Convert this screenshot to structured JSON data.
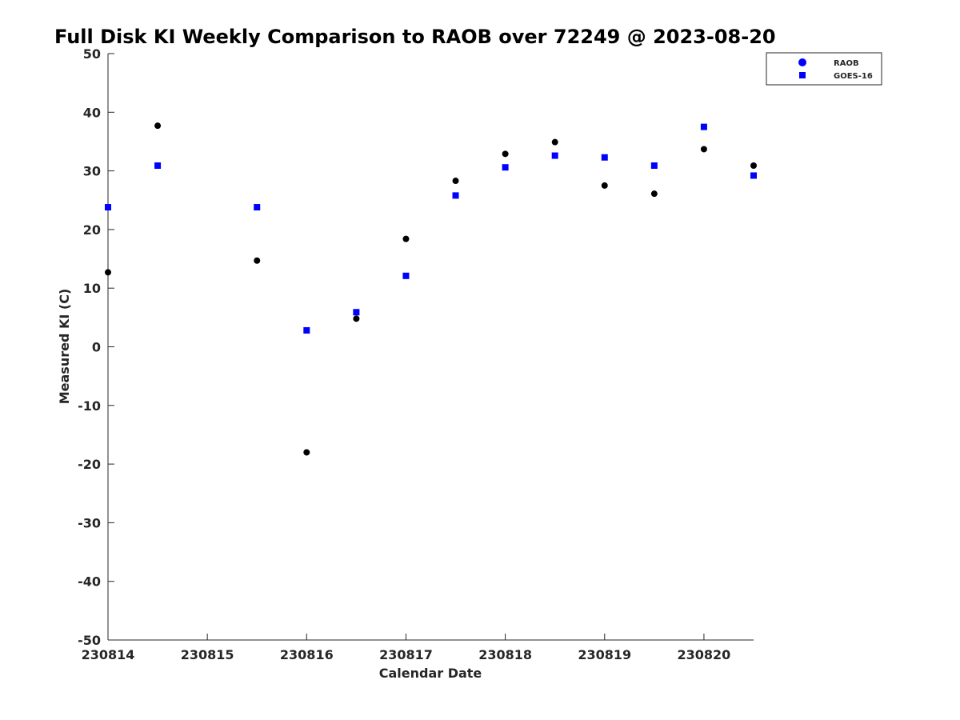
{
  "chart_data": {
    "type": "scatter",
    "title": "Full Disk KI Weekly Comparison to RAOB over 72249 @ 2023-08-20",
    "xlabel": "Calendar Date",
    "ylabel": "Measured KI (C)",
    "xlim": [
      "2023-08-14T00:00",
      "2023-08-20T12:00"
    ],
    "ylim": [
      -50,
      50
    ],
    "x_tick_values": [
      "2023-08-14",
      "2023-08-15",
      "2023-08-16",
      "2023-08-17",
      "2023-08-18",
      "2023-08-19",
      "2023-08-20"
    ],
    "x_tick_labels": [
      "230814",
      "230815",
      "230816",
      "230817",
      "230818",
      "230819",
      "230820"
    ],
    "y_ticks": [
      50,
      40,
      30,
      20,
      10,
      0,
      -10,
      -20,
      -30,
      -40,
      -50
    ],
    "grid": false,
    "legend_position": "top-right",
    "series": [
      {
        "name": "RAOB",
        "marker": "circle",
        "color": "#000000",
        "legend_color": "#0000ff",
        "points": [
          {
            "x": "2023-08-14T00:00",
            "y": 12.7
          },
          {
            "x": "2023-08-14T12:00",
            "y": 37.7
          },
          {
            "x": "2023-08-15T12:00",
            "y": 14.7
          },
          {
            "x": "2023-08-16T00:00",
            "y": -18
          },
          {
            "x": "2023-08-16T12:00",
            "y": 4.8
          },
          {
            "x": "2023-08-17T00:00",
            "y": 18.4
          },
          {
            "x": "2023-08-17T12:00",
            "y": 28.3
          },
          {
            "x": "2023-08-18T00:00",
            "y": 32.9
          },
          {
            "x": "2023-08-18T12:00",
            "y": 34.9
          },
          {
            "x": "2023-08-19T00:00",
            "y": 27.5
          },
          {
            "x": "2023-08-19T12:00",
            "y": 26.1
          },
          {
            "x": "2023-08-20T00:00",
            "y": 33.7
          },
          {
            "x": "2023-08-20T12:00",
            "y": 30.9
          }
        ]
      },
      {
        "name": "GOES-16",
        "marker": "square",
        "color": "#0000ff",
        "legend_color": "#0000ff",
        "points": [
          {
            "x": "2023-08-14T00:00",
            "y": 23.8
          },
          {
            "x": "2023-08-14T12:00",
            "y": 30.9
          },
          {
            "x": "2023-08-15T12:00",
            "y": 23.8
          },
          {
            "x": "2023-08-16T00:00",
            "y": 2.8
          },
          {
            "x": "2023-08-16T12:00",
            "y": 5.9
          },
          {
            "x": "2023-08-17T00:00",
            "y": 12.1
          },
          {
            "x": "2023-08-17T12:00",
            "y": 25.8
          },
          {
            "x": "2023-08-18T00:00",
            "y": 30.6
          },
          {
            "x": "2023-08-18T12:00",
            "y": 32.6
          },
          {
            "x": "2023-08-19T00:00",
            "y": 32.3
          },
          {
            "x": "2023-08-19T12:00",
            "y": 30.9
          },
          {
            "x": "2023-08-20T00:00",
            "y": 37.5
          },
          {
            "x": "2023-08-20T12:00",
            "y": 29.2
          }
        ]
      }
    ]
  }
}
